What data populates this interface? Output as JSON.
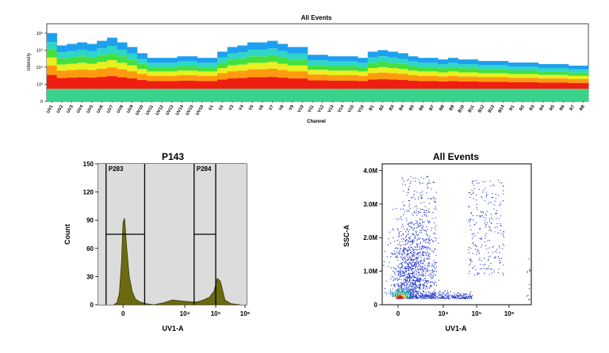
{
  "chart_data": [
    {
      "type": "heatmap",
      "title": "All Events",
      "xlabel": "Channel",
      "ylabel": "Intensity",
      "y_ticks": [
        "10⁶",
        "10⁵",
        "10⁴",
        "10³",
        "0"
      ],
      "categories": [
        "UV1",
        "UV2",
        "UV3",
        "UV4",
        "UV5",
        "UV6",
        "UV7",
        "UV8",
        "UV9",
        "UV10",
        "UV11",
        "UV12",
        "UV13",
        "UV14",
        "UV15",
        "UV16",
        "V1",
        "V2",
        "V3",
        "V4",
        "V5",
        "V6",
        "V7",
        "V8",
        "V9",
        "V10",
        "V11",
        "V12",
        "V13",
        "V14",
        "V15",
        "V16",
        "B1",
        "B2",
        "B3",
        "B4",
        "B5",
        "B6",
        "B7",
        "B8",
        "B9",
        "B10",
        "B11",
        "B12",
        "B13",
        "B14",
        "R1",
        "R2",
        "R3",
        "R4",
        "R5",
        "R6",
        "R7",
        "R8"
      ],
      "band_top_decades": [
        4.4,
        3.6,
        3.7,
        3.8,
        3.7,
        3.9,
        4.1,
        3.8,
        3.5,
        3.1,
        2.8,
        2.8,
        2.8,
        2.9,
        2.9,
        2.8,
        2.8,
        3.2,
        3.5,
        3.6,
        3.8,
        3.8,
        3.9,
        3.7,
        3.5,
        3.5,
        3.0,
        3.0,
        2.9,
        2.9,
        2.9,
        2.8,
        3.2,
        3.3,
        3.2,
        3.1,
        2.9,
        2.8,
        2.8,
        2.7,
        2.8,
        2.7,
        2.7,
        2.6,
        2.6,
        2.6,
        2.5,
        2.5,
        2.5,
        2.4,
        2.4,
        2.4,
        2.3,
        2.3
      ],
      "band_bottom_decades": [
        0.8,
        0.8,
        0.8,
        0.8,
        0.8,
        0.8,
        0.8,
        0.8,
        0.8,
        0.8,
        0.8,
        0.8,
        0.8,
        0.8,
        0.8,
        0.8,
        0.8,
        0.8,
        0.8,
        0.8,
        0.8,
        0.8,
        0.8,
        0.8,
        0.8,
        0.8,
        0.8,
        0.8,
        0.8,
        0.8,
        0.8,
        0.8,
        0.8,
        0.8,
        0.8,
        0.8,
        0.8,
        0.8,
        0.8,
        0.8,
        0.8,
        0.8,
        0.8,
        0.8,
        0.8,
        0.8,
        0.8,
        0.8,
        0.8,
        0.8,
        0.8,
        0.8,
        0.8,
        0.8
      ],
      "colors": [
        "#1ea0f0",
        "#2fd6c8",
        "#44e040",
        "#e8f020",
        "#ff9a10",
        "#f01e10"
      ]
    },
    {
      "type": "area",
      "title": "P143",
      "xlabel": "UV1-A",
      "ylabel": "Count",
      "ylim": [
        0,
        150
      ],
      "y_ticks": [
        0,
        30,
        60,
        90,
        120,
        150
      ],
      "x_ticks": [
        "0",
        "10⁴",
        "10⁵",
        "10⁶"
      ],
      "x": [
        -0.3,
        -0.2,
        -0.12,
        -0.05,
        0,
        0.05,
        0.12,
        0.2,
        0.3,
        0.4,
        0.55,
        0.75,
        1,
        1.3,
        1.6,
        1.9,
        2.2,
        2.4,
        2.6,
        2.8,
        2.95,
        3.05,
        3.15,
        3.3,
        3.5,
        3.8
      ],
      "values": [
        0,
        2,
        12,
        45,
        88,
        92,
        60,
        30,
        14,
        6,
        3,
        1,
        0,
        2,
        5,
        4,
        3,
        3,
        5,
        8,
        15,
        28,
        25,
        5,
        1,
        0
      ],
      "fill": "#6b6a10",
      "gates": [
        {
          "name": "P283",
          "x_range": [
            -0.55,
            0.7
          ],
          "level": 75
        },
        {
          "name": "P284",
          "x_range": [
            2.3,
            3.0
          ],
          "level": 75
        }
      ]
    },
    {
      "type": "scatter",
      "title": "All Events",
      "xlabel": "UV1-A",
      "ylabel": "SSC-A",
      "ylim": [
        0,
        4.2
      ],
      "y_ticks": [
        "0",
        "1.0M",
        "2.0M",
        "3.0M",
        "4.0M"
      ],
      "x_ticks": [
        "0",
        "10⁴",
        "10⁵",
        "10⁶"
      ],
      "point_color": "#1a2ec8"
    }
  ]
}
